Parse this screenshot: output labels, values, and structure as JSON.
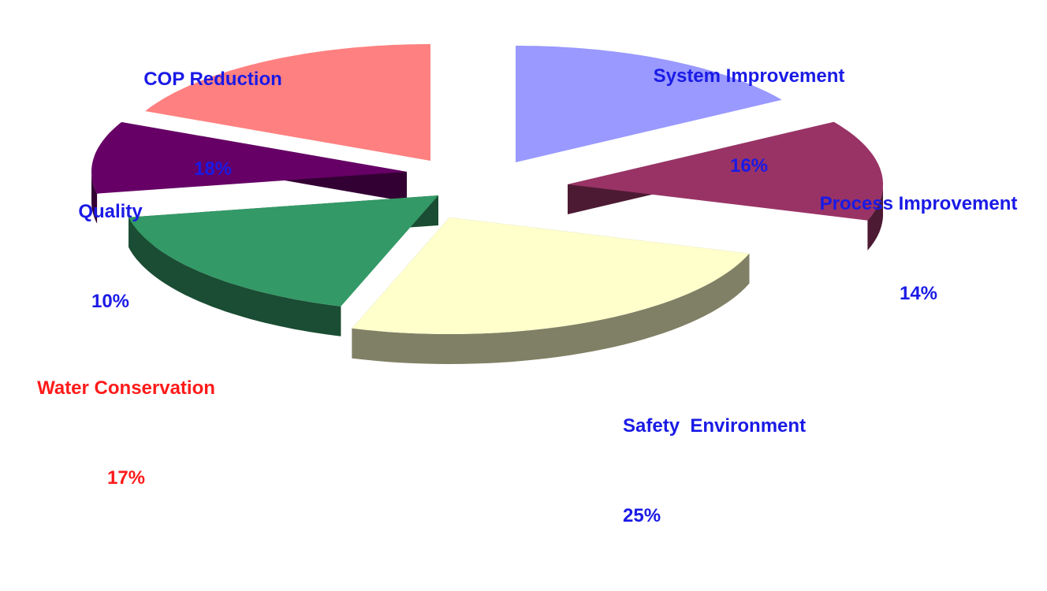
{
  "chart_data": {
    "type": "pie",
    "slices": [
      {
        "key": "system",
        "name": "System Improvement",
        "display_name": "System Improvement",
        "value": 16,
        "value_label": "16%",
        "color": "#9999FF",
        "side_color": "#4C4C80",
        "label_color": "#1A1AE6"
      },
      {
        "key": "process",
        "name": "Process Improvement",
        "display_name": "Process Improvement",
        "value": 14,
        "value_label": "14%",
        "color": "#993366",
        "side_color": "#4D1A33",
        "label_color": "#1A1AE6"
      },
      {
        "key": "safety",
        "name": "Safety Environment",
        "display_name": "Safety  Environment",
        "value": 25,
        "value_label": "25%",
        "color": "#FFFFCC",
        "side_color": "#808066",
        "label_color": "#1A1AE6"
      },
      {
        "key": "water",
        "name": "Water Conservation",
        "display_name": "Water Conservation",
        "value": 17,
        "value_label": "17%",
        "color": "#339966",
        "side_color": "#1A4D33",
        "label_color": "#FF1A1A"
      },
      {
        "key": "quality",
        "name": "Quality",
        "display_name": "Quality",
        "value": 10,
        "value_label": "10%",
        "color": "#660066",
        "side_color": "#330033",
        "label_color": "#1A1AE6"
      },
      {
        "key": "cop",
        "name": "COP Reduction",
        "display_name": "COP Reduction",
        "value": 18,
        "value_label": "18%",
        "color": "#FF8080",
        "side_color": "#804040",
        "label_color": "#1A1AE6"
      }
    ],
    "style": "3d-exploded"
  }
}
